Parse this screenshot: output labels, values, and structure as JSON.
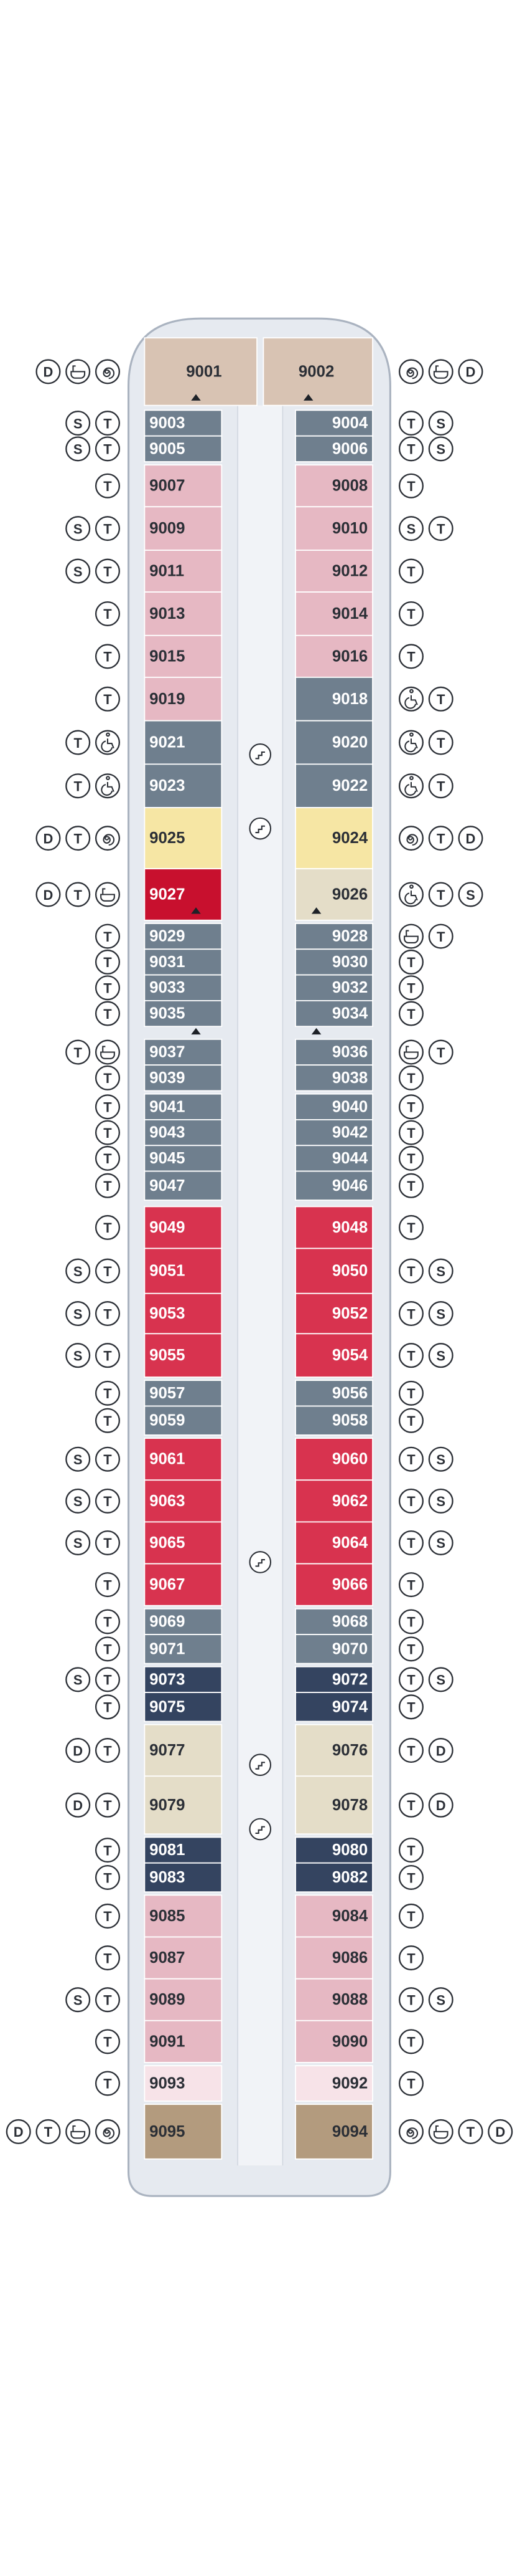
{
  "port": [
    {
      "number": "9001",
      "color": "#d8c3b3",
      "badges": [
        "D"
      ]
    },
    {
      "number": "9003",
      "color": "#6f7f8e",
      "badges": [
        "S",
        "T"
      ]
    },
    {
      "number": "9005",
      "color": "#6f7f8e",
      "badges": [
        "S",
        "T"
      ]
    },
    {
      "number": "9007",
      "color": "#e6b8c3",
      "badges": [
        "T"
      ]
    },
    {
      "number": "9009",
      "color": "#e6b8c3",
      "badges": [
        "S",
        "T"
      ]
    },
    {
      "number": "9011",
      "color": "#e6b8c3",
      "badges": [
        "S",
        "T"
      ]
    },
    {
      "number": "9013",
      "color": "#e6b8c3",
      "badges": [
        "T"
      ]
    },
    {
      "number": "9015",
      "color": "#e6b8c3",
      "badges": [
        "T"
      ]
    },
    {
      "number": "9019",
      "color": "#e6b8c3",
      "badges": [
        "T"
      ]
    },
    {
      "number": "9021",
      "color": "#6f7f8e",
      "badges": [
        "T"
      ]
    },
    {
      "number": "9023",
      "color": "#6f7f8e",
      "badges": [
        "T"
      ]
    },
    {
      "number": "9025",
      "color": "#f6e6a4",
      "badges": [
        "D",
        "T"
      ]
    },
    {
      "number": "9027",
      "color": "#c8102e",
      "badges": [
        "D",
        "T"
      ]
    },
    {
      "number": "9029",
      "color": "#6f7f8e",
      "badges": [
        "T"
      ]
    },
    {
      "number": "9031",
      "color": "#6f7f8e",
      "badges": [
        "T"
      ]
    },
    {
      "number": "9033",
      "color": "#6f7f8e",
      "badges": [
        "T"
      ]
    },
    {
      "number": "9035",
      "color": "#6f7f8e",
      "badges": [
        "T"
      ]
    },
    {
      "number": "9037",
      "color": "#6f7f8e",
      "badges": [
        "T"
      ]
    },
    {
      "number": "9039",
      "color": "#6f7f8e",
      "badges": [
        "T"
      ]
    },
    {
      "number": "9041",
      "color": "#6f7f8e",
      "badges": [
        "T"
      ]
    },
    {
      "number": "9043",
      "color": "#6f7f8e",
      "badges": [
        "T"
      ]
    },
    {
      "number": "9045",
      "color": "#6f7f8e",
      "badges": [
        "T"
      ]
    },
    {
      "number": "9047",
      "color": "#6f7f8e",
      "badges": [
        "T"
      ]
    },
    {
      "number": "9049",
      "color": "#d8334f",
      "badges": [
        "T"
      ]
    },
    {
      "number": "9051",
      "color": "#d8334f",
      "badges": [
        "S",
        "T"
      ]
    },
    {
      "number": "9053",
      "color": "#d8334f",
      "badges": [
        "S",
        "T"
      ]
    },
    {
      "number": "9055",
      "color": "#d8334f",
      "badges": [
        "S",
        "T"
      ]
    },
    {
      "number": "9057",
      "color": "#6f7f8e",
      "badges": [
        "T"
      ]
    },
    {
      "number": "9059",
      "color": "#6f7f8e",
      "badges": [
        "T"
      ]
    },
    {
      "number": "9061",
      "color": "#d8334f",
      "badges": [
        "S",
        "T"
      ]
    },
    {
      "number": "9063",
      "color": "#d8334f",
      "badges": [
        "S",
        "T"
      ]
    },
    {
      "number": "9065",
      "color": "#d8334f",
      "badges": [
        "S",
        "T"
      ]
    },
    {
      "number": "9067",
      "color": "#d8334f",
      "badges": [
        "T"
      ]
    },
    {
      "number": "9069",
      "color": "#6f7f8e",
      "badges": [
        "T"
      ]
    },
    {
      "number": "9071",
      "color": "#6f7f8e",
      "badges": [
        "T"
      ]
    },
    {
      "number": "9073",
      "color": "#344460",
      "badges": [
        "S",
        "T"
      ]
    },
    {
      "number": "9075",
      "color": "#344460",
      "badges": [
        "T"
      ]
    },
    {
      "number": "9077",
      "color": "#e4ddc8",
      "badges": [
        "D",
        "T"
      ]
    },
    {
      "number": "9079",
      "color": "#e4ddc8",
      "badges": [
        "D",
        "T"
      ]
    },
    {
      "number": "9081",
      "color": "#344460",
      "badges": [
        "T"
      ]
    },
    {
      "number": "9083",
      "color": "#344460",
      "badges": [
        "T"
      ]
    },
    {
      "number": "9085",
      "color": "#e6b8c3",
      "badges": [
        "T"
      ]
    },
    {
      "number": "9087",
      "color": "#e6b8c3",
      "badges": [
        "T"
      ]
    },
    {
      "number": "9089",
      "color": "#e6b8c3",
      "badges": [
        "S",
        "T"
      ]
    },
    {
      "number": "9091",
      "color": "#e6b8c3",
      "badges": [
        "T"
      ]
    },
    {
      "number": "9093",
      "color": "#f7e3e8",
      "badges": [
        "T"
      ]
    },
    {
      "number": "9095",
      "color": "#b39b7e",
      "badges": [
        "D",
        "T"
      ]
    }
  ],
  "starboard": [
    {
      "number": "9002",
      "color": "#d8c3b3",
      "badges": [
        "D"
      ]
    },
    {
      "number": "9004",
      "color": "#6f7f8e",
      "badges": [
        "T",
        "S"
      ]
    },
    {
      "number": "9006",
      "color": "#6f7f8e",
      "badges": [
        "T",
        "S"
      ]
    },
    {
      "number": "9008",
      "color": "#e6b8c3",
      "badges": [
        "T"
      ]
    },
    {
      "number": "9010",
      "color": "#e6b8c3",
      "badges": [
        "S",
        "T"
      ]
    },
    {
      "number": "9012",
      "color": "#e6b8c3",
      "badges": [
        "T"
      ]
    },
    {
      "number": "9014",
      "color": "#e6b8c3",
      "badges": [
        "T"
      ]
    },
    {
      "number": "9016",
      "color": "#e6b8c3",
      "badges": [
        "T"
      ]
    },
    {
      "number": "9018",
      "color": "#6f7f8e",
      "badges": [
        "T"
      ]
    },
    {
      "number": "9020",
      "color": "#6f7f8e",
      "badges": [
        "T"
      ]
    },
    {
      "number": "9022",
      "color": "#6f7f8e",
      "badges": [
        "T"
      ]
    },
    {
      "number": "9024",
      "color": "#f6e6a4",
      "badges": [
        "T",
        "D"
      ]
    },
    {
      "number": "9026",
      "color": "#e4ddc8",
      "badges": [
        "T",
        "S"
      ]
    },
    {
      "number": "9028",
      "color": "#6f7f8e",
      "badges": [
        "T"
      ]
    },
    {
      "number": "9030",
      "color": "#6f7f8e",
      "badges": [
        "T"
      ]
    },
    {
      "number": "9032",
      "color": "#6f7f8e",
      "badges": [
        "T"
      ]
    },
    {
      "number": "9034",
      "color": "#6f7f8e",
      "badges": [
        "T"
      ]
    },
    {
      "number": "9036",
      "color": "#6f7f8e",
      "badges": [
        "T"
      ]
    },
    {
      "number": "9038",
      "color": "#6f7f8e",
      "badges": [
        "T"
      ]
    },
    {
      "number": "9040",
      "color": "#6f7f8e",
      "badges": [
        "T"
      ]
    },
    {
      "number": "9042",
      "color": "#6f7f8e",
      "badges": [
        "T"
      ]
    },
    {
      "number": "9044",
      "color": "#6f7f8e",
      "badges": [
        "T"
      ]
    },
    {
      "number": "9046",
      "color": "#6f7f8e",
      "badges": [
        "T"
      ]
    },
    {
      "number": "9048",
      "color": "#d8334f",
      "badges": [
        "T"
      ]
    },
    {
      "number": "9050",
      "color": "#d8334f",
      "badges": [
        "T",
        "S"
      ]
    },
    {
      "number": "9052",
      "color": "#d8334f",
      "badges": [
        "T",
        "S"
      ]
    },
    {
      "number": "9054",
      "color": "#d8334f",
      "badges": [
        "T",
        "S"
      ]
    },
    {
      "number": "9056",
      "color": "#6f7f8e",
      "badges": [
        "T"
      ]
    },
    {
      "number": "9058",
      "color": "#6f7f8e",
      "badges": [
        "T"
      ]
    },
    {
      "number": "9060",
      "color": "#d8334f",
      "badges": [
        "T",
        "S"
      ]
    },
    {
      "number": "9062",
      "color": "#d8334f",
      "badges": [
        "T",
        "S"
      ]
    },
    {
      "number": "9064",
      "color": "#d8334f",
      "badges": [
        "T",
        "S"
      ]
    },
    {
      "number": "9066",
      "color": "#d8334f",
      "badges": [
        "T"
      ]
    },
    {
      "number": "9068",
      "color": "#6f7f8e",
      "badges": [
        "T"
      ]
    },
    {
      "number": "9070",
      "color": "#6f7f8e",
      "badges": [
        "T"
      ]
    },
    {
      "number": "9072",
      "color": "#344460",
      "badges": [
        "T",
        "S"
      ]
    },
    {
      "number": "9074",
      "color": "#344460",
      "badges": [
        "T"
      ]
    },
    {
      "number": "9076",
      "color": "#e4ddc8",
      "badges": [
        "T",
        "D"
      ]
    },
    {
      "number": "9078",
      "color": "#e4ddc8",
      "badges": [
        "T",
        "D"
      ]
    },
    {
      "number": "9080",
      "color": "#344460",
      "badges": [
        "T"
      ]
    },
    {
      "number": "9082",
      "color": "#344460",
      "badges": [
        "T"
      ]
    },
    {
      "number": "9084",
      "color": "#e6b8c3",
      "badges": [
        "T"
      ]
    },
    {
      "number": "9086",
      "color": "#e6b8c3",
      "badges": [
        "T"
      ]
    },
    {
      "number": "9088",
      "color": "#e6b8c3",
      "badges": [
        "T",
        "S"
      ]
    },
    {
      "number": "9090",
      "color": "#e6b8c3",
      "badges": [
        "T"
      ]
    },
    {
      "number": "9092",
      "color": "#f7e3e8",
      "badges": [
        "T"
      ]
    },
    {
      "number": "9094",
      "color": "#b39b7e",
      "badges": [
        "T",
        "D"
      ]
    }
  ]
}
